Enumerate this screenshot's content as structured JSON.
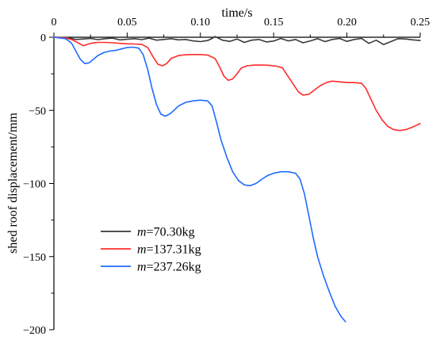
{
  "chart_data": {
    "type": "line",
    "xlabel": "time/s",
    "ylabel": "shed roof displacement/mm",
    "xlim": [
      0,
      0.25
    ],
    "ylim": [
      -200,
      0
    ],
    "x_ticks": [
      "0",
      "0.05",
      "0.10",
      "0.15",
      "0.20",
      "0.25"
    ],
    "y_ticks": [
      "0",
      "-50",
      "-100",
      "-150",
      "-200"
    ],
    "x_axis_position": "top",
    "legend_position": "lower-left",
    "grid": false,
    "series": [
      {
        "name_var": "m",
        "name_value": "=70.30kg",
        "color": "#3a3a3a",
        "x": [
          0,
          0.01,
          0.015,
          0.02,
          0.025,
          0.03,
          0.035,
          0.04,
          0.045,
          0.05,
          0.055,
          0.06,
          0.065,
          0.07,
          0.075,
          0.08,
          0.085,
          0.09,
          0.095,
          0.1,
          0.105,
          0.108,
          0.11,
          0.112,
          0.115,
          0.12,
          0.125,
          0.13,
          0.135,
          0.14,
          0.145,
          0.15,
          0.155,
          0.16,
          0.165,
          0.17,
          0.175,
          0.18,
          0.185,
          0.19,
          0.195,
          0.2,
          0.205,
          0.21,
          0.215,
          0.22,
          0.225,
          0.23,
          0.235,
          0.24,
          0.245,
          0.25
        ],
        "y": [
          0,
          -0.3,
          -1.5,
          -1.2,
          -0.8,
          -1.6,
          -1.0,
          -0.6,
          -1.8,
          -1.4,
          -1.0,
          -1.6,
          -0.6,
          -2.0,
          -1.5,
          -1.0,
          -1.8,
          -1.5,
          -2.5,
          -3.0,
          -2.2,
          -0.8,
          0.5,
          -0.5,
          -2.0,
          -2.8,
          -1.2,
          -3.5,
          -2.0,
          -1.5,
          -3.2,
          -2.6,
          -0.8,
          -2.5,
          -1.5,
          -3.8,
          -2.5,
          -1.0,
          -3.0,
          -1.5,
          -0.8,
          -2.8,
          -1.5,
          -0.8,
          -4.2,
          -2.0,
          -5.0,
          -3.0,
          -1.0,
          -1.2,
          -1.8,
          -2.2
        ]
      },
      {
        "name_var": "m",
        "name_value": "=137.31kg",
        "color": "#ff2b2b",
        "x": [
          0,
          0.008,
          0.012,
          0.016,
          0.02,
          0.023,
          0.026,
          0.03,
          0.035,
          0.04,
          0.045,
          0.05,
          0.055,
          0.06,
          0.064,
          0.068,
          0.071,
          0.074,
          0.077,
          0.08,
          0.085,
          0.09,
          0.095,
          0.1,
          0.105,
          0.11,
          0.113,
          0.116,
          0.119,
          0.122,
          0.125,
          0.128,
          0.132,
          0.137,
          0.142,
          0.147,
          0.152,
          0.156,
          0.16,
          0.164,
          0.167,
          0.17,
          0.174,
          0.178,
          0.182,
          0.186,
          0.19,
          0.195,
          0.2,
          0.205,
          0.21,
          0.213,
          0.216,
          0.22,
          0.224,
          0.228,
          0.232,
          0.236,
          0.24,
          0.244,
          0.248,
          0.25
        ],
        "y": [
          0,
          -0.5,
          -1.5,
          -3.5,
          -5.8,
          -4.8,
          -4.0,
          -3.5,
          -3.5,
          -3.8,
          -4.2,
          -4.5,
          -4.6,
          -4.8,
          -7.0,
          -14.0,
          -18.5,
          -19.5,
          -18.0,
          -14.5,
          -12.5,
          -12.0,
          -11.8,
          -11.8,
          -12.2,
          -14.5,
          -20.0,
          -26.5,
          -29.5,
          -28.5,
          -25.0,
          -21.0,
          -19.5,
          -19.0,
          -19.0,
          -19.2,
          -19.8,
          -21.0,
          -27.0,
          -33.0,
          -37.5,
          -39.5,
          -39.0,
          -36.0,
          -33.0,
          -31.0,
          -30.0,
          -30.5,
          -31.0,
          -31.0,
          -31.5,
          -35.0,
          -41.5,
          -50.0,
          -56.5,
          -61.0,
          -63.2,
          -63.8,
          -63.2,
          -61.8,
          -60.0,
          -59.0
        ]
      },
      {
        "name_var": "m",
        "name_value": "=237.26kg",
        "color": "#1e6bff",
        "x": [
          0,
          0.008,
          0.012,
          0.015,
          0.018,
          0.021,
          0.024,
          0.027,
          0.03,
          0.034,
          0.038,
          0.042,
          0.046,
          0.05,
          0.054,
          0.058,
          0.061,
          0.064,
          0.067,
          0.07,
          0.073,
          0.076,
          0.079,
          0.082,
          0.085,
          0.09,
          0.095,
          0.1,
          0.105,
          0.108,
          0.111,
          0.114,
          0.118,
          0.122,
          0.126,
          0.13,
          0.134,
          0.138,
          0.142,
          0.146,
          0.15,
          0.155,
          0.16,
          0.165,
          0.168,
          0.171,
          0.174,
          0.177,
          0.18,
          0.184,
          0.188,
          0.192,
          0.196,
          0.199
        ],
        "y": [
          0,
          -1.0,
          -4.0,
          -9.5,
          -15.0,
          -18.0,
          -17.5,
          -15.0,
          -12.5,
          -10.5,
          -9.5,
          -9.0,
          -8.0,
          -7.0,
          -6.8,
          -7.5,
          -12.0,
          -22.0,
          -35.0,
          -46.0,
          -52.5,
          -54.0,
          -52.5,
          -50.0,
          -47.0,
          -44.5,
          -43.5,
          -43.0,
          -43.5,
          -47.0,
          -58.0,
          -70.0,
          -82.0,
          -92.0,
          -98.0,
          -101.0,
          -101.5,
          -100.0,
          -97.0,
          -94.5,
          -93.0,
          -92.0,
          -92.0,
          -93.0,
          -97.0,
          -107.0,
          -122.0,
          -137.0,
          -150.0,
          -163.0,
          -174.0,
          -184.0,
          -191.0,
          -194.5
        ]
      }
    ]
  }
}
